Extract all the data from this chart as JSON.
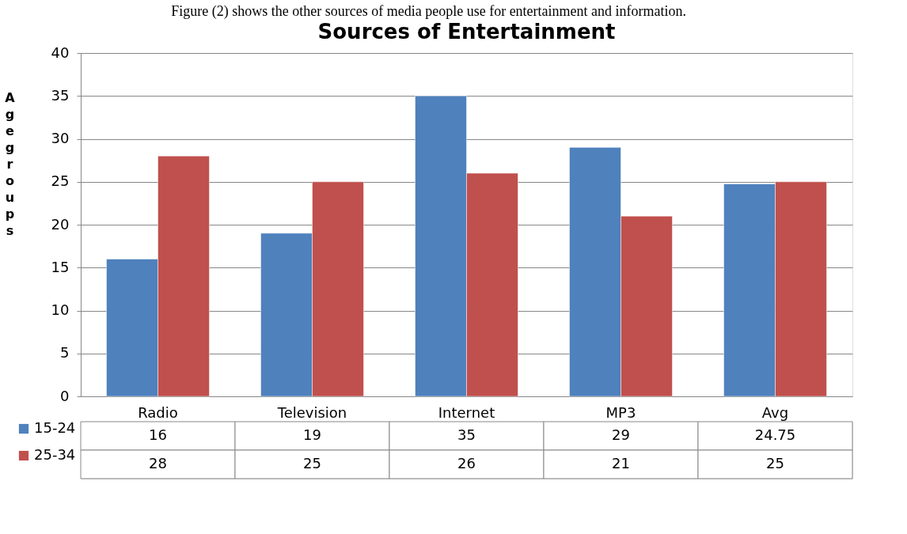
{
  "chart_data": {
    "type": "bar",
    "title": "Sources of Entertainment",
    "ylabel": "Age groups",
    "annotations": [
      "Figure (2) shows the other sources of media people use for entertainment and information."
    ],
    "categories": [
      "Radio",
      "Television",
      "Internet",
      "MP3",
      "Avg"
    ],
    "series": [
      {
        "name": "15-24",
        "color": "#4f81bd",
        "values": [
          16,
          19,
          35,
          29,
          24.75
        ]
      },
      {
        "name": "25-34",
        "color": "#c0504d",
        "values": [
          28,
          25,
          26,
          21,
          25
        ]
      }
    ],
    "ylim": [
      0,
      40
    ],
    "yticks": [
      0,
      5,
      10,
      15,
      20,
      25,
      30,
      35,
      40
    ],
    "grid": "y",
    "legend": "bottom",
    "data_labels": true
  }
}
